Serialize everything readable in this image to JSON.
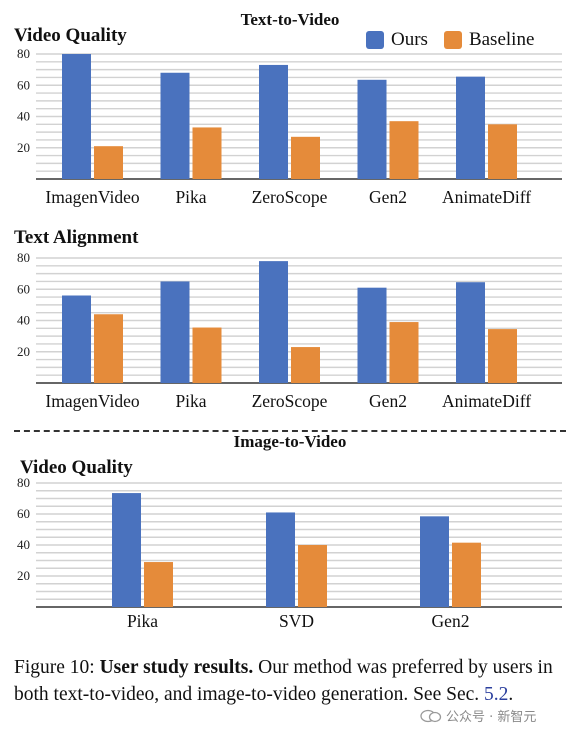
{
  "colors": {
    "ours": "#4a72be",
    "baseline": "#e58b3a"
  },
  "header": {
    "t2v_title": "Text-to-Video",
    "i2v_title": "Image-to-Video"
  },
  "legend": {
    "ours": "Ours",
    "baseline": "Baseline"
  },
  "chart_data": [
    {
      "type": "bar",
      "title": "Video Quality",
      "categories": [
        "ImagenVideo",
        "Pika",
        "ZeroScope",
        "Gen2",
        "AnimateDiff"
      ],
      "series": [
        {
          "name": "Ours",
          "values": [
            80,
            68,
            73,
            63.5,
            65.5
          ]
        },
        {
          "name": "Baseline",
          "values": [
            21,
            33,
            27,
            37,
            35
          ]
        }
      ],
      "yticks": [
        20,
        40,
        60,
        80
      ],
      "ylim": [
        0,
        80
      ],
      "grid": true
    },
    {
      "type": "bar",
      "title": "Text Alignment",
      "categories": [
        "ImagenVideo",
        "Pika",
        "ZeroScope",
        "Gen2",
        "AnimateDiff"
      ],
      "series": [
        {
          "name": "Ours",
          "values": [
            56,
            65,
            78,
            61,
            64.5
          ]
        },
        {
          "name": "Baseline",
          "values": [
            44,
            35.5,
            23,
            39,
            34.5
          ]
        }
      ],
      "yticks": [
        20,
        40,
        60,
        80
      ],
      "ylim": [
        0,
        80
      ],
      "grid": true
    },
    {
      "type": "bar",
      "title": "Video Quality",
      "categories": [
        "Pika",
        "SVD",
        "Gen2"
      ],
      "series": [
        {
          "name": "Ours",
          "values": [
            73.5,
            61,
            58.5
          ]
        },
        {
          "name": "Baseline",
          "values": [
            29,
            40,
            41.5
          ]
        }
      ],
      "yticks": [
        20,
        40,
        60,
        80
      ],
      "ylim": [
        0,
        80
      ],
      "grid": true
    }
  ],
  "caption": {
    "label": "Figure 10: ",
    "bold": "User study results.",
    "text": " Our method was preferred by users in both text-to-video, and image-to-video generation. See Sec. ",
    "ref": "5.2",
    "end": "."
  },
  "watermark": {
    "text": "公众号 · 新智元",
    "icon": "wechat-icon"
  }
}
